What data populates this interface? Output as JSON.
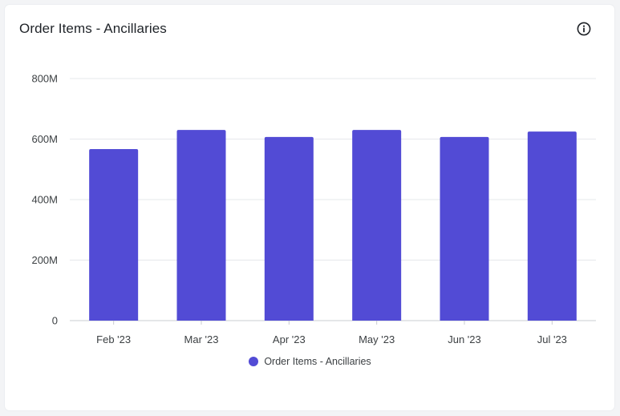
{
  "card": {
    "title": "Order Items - Ancillaries"
  },
  "icons": {
    "info": "info-circle-icon"
  },
  "colors": {
    "bar": "#524bd5",
    "grid": "#e6e8eb",
    "axis": "#c9ccd1",
    "text": "#3c4043"
  },
  "chart_data": {
    "type": "bar",
    "title": "Order Items - Ancillaries",
    "xlabel": "",
    "ylabel": "",
    "categories": [
      "Feb '23",
      "Mar '23",
      "Apr '23",
      "May '23",
      "Jun '23",
      "Jul '23"
    ],
    "series": [
      {
        "name": "Order Items - Ancillaries",
        "values": [
          567000000,
          630000000,
          607000000,
          630000000,
          607000000,
          625000000
        ]
      }
    ],
    "ylim": [
      0,
      800000000
    ],
    "yticks": [
      0,
      200000000,
      400000000,
      600000000,
      800000000
    ],
    "ytick_labels": [
      "0",
      "200M",
      "400M",
      "600M",
      "800M"
    ],
    "grid": true,
    "legend": "bottom-center"
  }
}
